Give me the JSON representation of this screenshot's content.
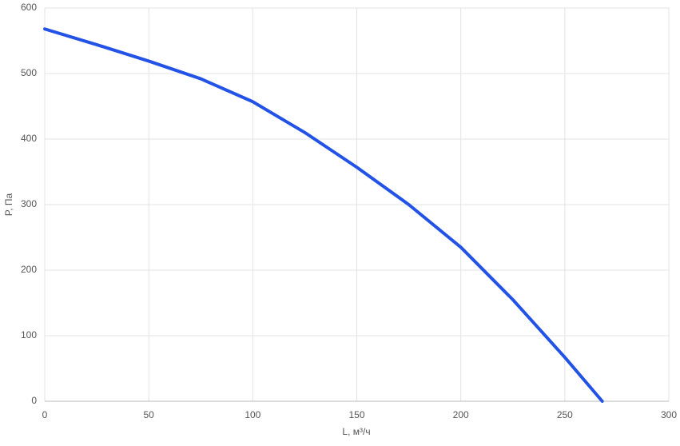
{
  "chart_data": {
    "type": "line",
    "x_label": "L, м³/ч",
    "y_label": "P, Па",
    "x": [
      0,
      25,
      50,
      75,
      100,
      125,
      150,
      175,
      200,
      225,
      250,
      268
    ],
    "series": [
      {
        "name": "P",
        "color": "#2353e6",
        "values": [
          568,
          544,
          519,
          492,
          457,
          410,
          357,
          300,
          235,
          155,
          67,
          0
        ]
      }
    ],
    "xlim": [
      0,
      300
    ],
    "ylim": [
      0,
      600
    ],
    "xticks": [
      0,
      50,
      100,
      150,
      200,
      250,
      300
    ],
    "yticks": [
      0,
      100,
      200,
      300,
      400,
      500,
      600
    ],
    "grid": true
  }
}
